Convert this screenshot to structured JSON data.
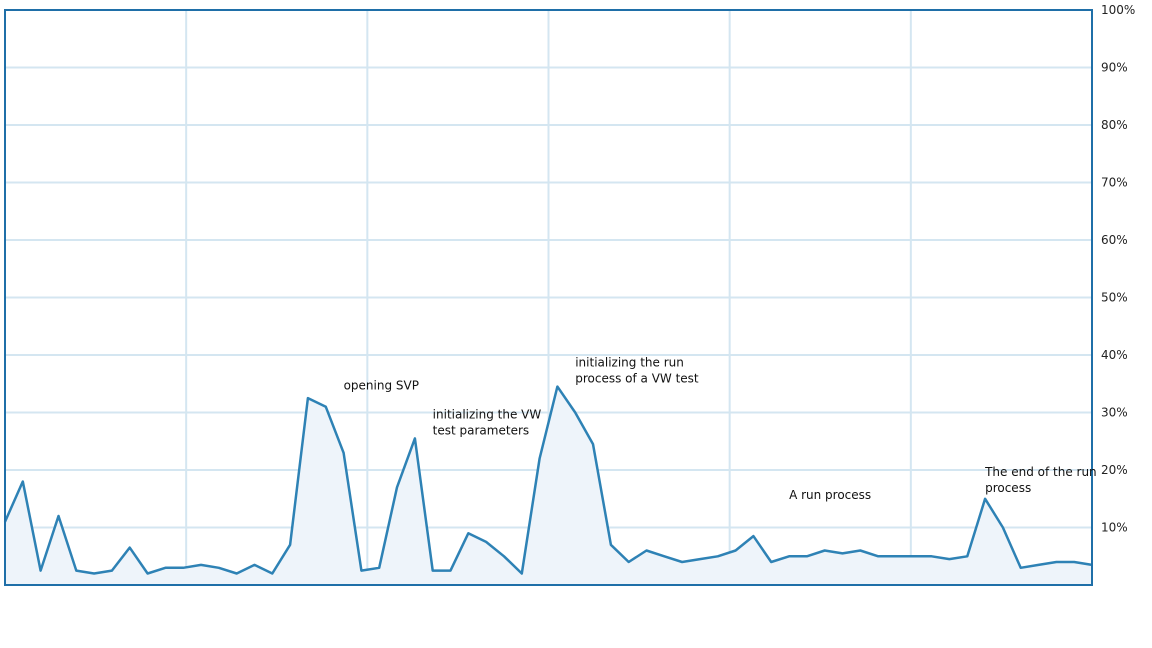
{
  "chart_data": {
    "type": "area",
    "title": "",
    "xlabel": "",
    "ylabel": "",
    "ylim": [
      0,
      100
    ],
    "grid": true,
    "yticks": [
      {
        "value": 10,
        "label": "10%"
      },
      {
        "value": 20,
        "label": "20%"
      },
      {
        "value": 30,
        "label": "30%"
      },
      {
        "value": 40,
        "label": "40%"
      },
      {
        "value": 50,
        "label": "50%"
      },
      {
        "value": 60,
        "label": "60%"
      },
      {
        "value": 70,
        "label": "70%"
      },
      {
        "value": 80,
        "label": "80%"
      },
      {
        "value": 90,
        "label": "90%"
      },
      {
        "value": 100,
        "label": "100%"
      }
    ],
    "series": [
      {
        "values": [
          11,
          18,
          2.5,
          12,
          2.5,
          2,
          2.5,
          6.5,
          2,
          3,
          3,
          3.5,
          3,
          2,
          3.5,
          2,
          7,
          32.5,
          31,
          23,
          2.5,
          3,
          17,
          25.5,
          2.5,
          2.5,
          9,
          7.5,
          5,
          2,
          22,
          34.5,
          30,
          24.5,
          7,
          4,
          6,
          5,
          4,
          4.5,
          5,
          6,
          8.5,
          4,
          5,
          5,
          6,
          5.5,
          6,
          5,
          5,
          5,
          5,
          4.5,
          5,
          15,
          10,
          3,
          3.5,
          4,
          4,
          3.5
        ]
      }
    ],
    "annotations": [
      {
        "lines": [
          "opening SVP"
        ],
        "x": 19,
        "y": 34
      },
      {
        "lines": [
          "initializing the VW",
          "test parameters"
        ],
        "x": 24,
        "y": 29
      },
      {
        "lines": [
          "initializing the run",
          "process of a VW test"
        ],
        "x": 32,
        "y": 38
      },
      {
        "lines": [
          "A run process"
        ],
        "x": 44,
        "y": 15
      },
      {
        "lines": [
          "The end of the run",
          "process"
        ],
        "x": 55,
        "y": 19
      }
    ],
    "colors": {
      "line": "#2e82b5",
      "fill": "#eef4fa",
      "grid": "#d4e6f1",
      "frame": "#1f6fa8"
    }
  }
}
